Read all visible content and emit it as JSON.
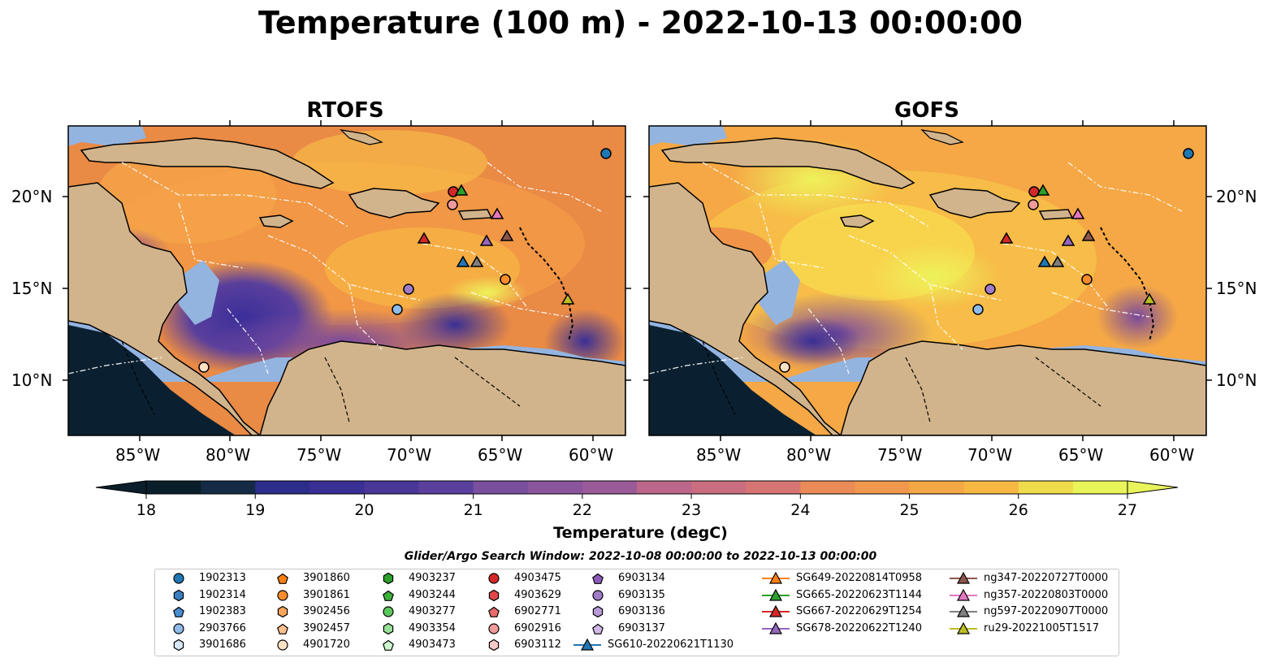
{
  "title": "Temperature (100 m) - 2022-10-13 00:00:00",
  "panels": [
    {
      "title": "RTOFS"
    },
    {
      "title": "GOFS"
    }
  ],
  "lon_ticks": [
    "85°W",
    "80°W",
    "75°W",
    "70°W",
    "65°W",
    "60°W"
  ],
  "lat_ticks": [
    "20°N",
    "15°N",
    "10°N"
  ],
  "colorbar": {
    "label": "Temperature (degC)",
    "ticks": [
      "18",
      "19",
      "20",
      "21",
      "22",
      "23",
      "24",
      "25",
      "26",
      "27"
    ],
    "min": 18,
    "max": 27
  },
  "legend": {
    "title": "Glider/Argo Search Window: 2022-10-08 00:00:00 to 2022-10-13 00:00:00",
    "entries": [
      {
        "label": "1902313",
        "marker": "circle",
        "color": "#1f77b4"
      },
      {
        "label": "1902314",
        "marker": "hexagon",
        "color": "#3a7fc0"
      },
      {
        "label": "1902383",
        "marker": "pentagon",
        "color": "#4a8cd0"
      },
      {
        "label": "2903766",
        "marker": "circle",
        "color": "#8fbce8"
      },
      {
        "label": "3901686",
        "marker": "hexagon",
        "color": "#d6e8f8"
      },
      {
        "label": "3901860",
        "marker": "pentagon",
        "color": "#ff7f0e"
      },
      {
        "label": "3901861",
        "marker": "circle",
        "color": "#ff8c2a"
      },
      {
        "label": "3902456",
        "marker": "hexagon",
        "color": "#ffa55a"
      },
      {
        "label": "3902457",
        "marker": "pentagon",
        "color": "#ffc08c"
      },
      {
        "label": "4901720",
        "marker": "circle",
        "color": "#ffe2c6"
      },
      {
        "label": "4903237",
        "marker": "hexagon",
        "color": "#2ca02c"
      },
      {
        "label": "4903244",
        "marker": "pentagon",
        "color": "#3cb03c"
      },
      {
        "label": "4903277",
        "marker": "circle",
        "color": "#5cc85c"
      },
      {
        "label": "4903354",
        "marker": "hexagon",
        "color": "#98e098"
      },
      {
        "label": "4903473",
        "marker": "pentagon",
        "color": "#cdf6cd"
      },
      {
        "label": "4903475",
        "marker": "circle",
        "color": "#d62728"
      },
      {
        "label": "4903629",
        "marker": "hexagon",
        "color": "#e04848"
      },
      {
        "label": "6902771",
        "marker": "pentagon",
        "color": "#e86a6a"
      },
      {
        "label": "6902916",
        "marker": "circle",
        "color": "#f09a9a"
      },
      {
        "label": "6903112",
        "marker": "hexagon",
        "color": "#f8c8c8"
      },
      {
        "label": "6903134",
        "marker": "pentagon",
        "color": "#8c5ab8"
      },
      {
        "label": "6903135",
        "marker": "circle",
        "color": "#a07cc8"
      },
      {
        "label": "6903136",
        "marker": "hexagon",
        "color": "#b89ad8"
      },
      {
        "label": "6903137",
        "marker": "pentagon",
        "color": "#d0b8ea"
      },
      {
        "label": "SG610-20220621T1130",
        "marker": "triangle",
        "color": "#1f77b4"
      },
      {
        "label": "SG649-20220814T0958",
        "marker": "triangle",
        "color": "#ff7f0e"
      },
      {
        "label": "SG665-20220623T1144",
        "marker": "triangle",
        "color": "#2ca02c"
      },
      {
        "label": "SG667-20220629T1254",
        "marker": "triangle",
        "color": "#d62728"
      },
      {
        "label": "SG678-20220622T1240",
        "marker": "triangle",
        "color": "#9467bd"
      },
      {
        "label": "ng347-20220727T0000",
        "marker": "triangle",
        "color": "#8c564b"
      },
      {
        "label": "ng357-20220803T0000",
        "marker": "triangle",
        "color": "#e377c2"
      },
      {
        "label": "ng597-20220907T0000",
        "marker": "triangle",
        "color": "#7f7f7f"
      },
      {
        "label": "ru29-20221005T1517",
        "marker": "triangle",
        "color": "#bcbd22"
      }
    ]
  },
  "map_colors": {
    "land": "#d2b48c",
    "shallow": "#94b4e0",
    "deep": "#0a2030",
    "coast": "#000000"
  }
}
